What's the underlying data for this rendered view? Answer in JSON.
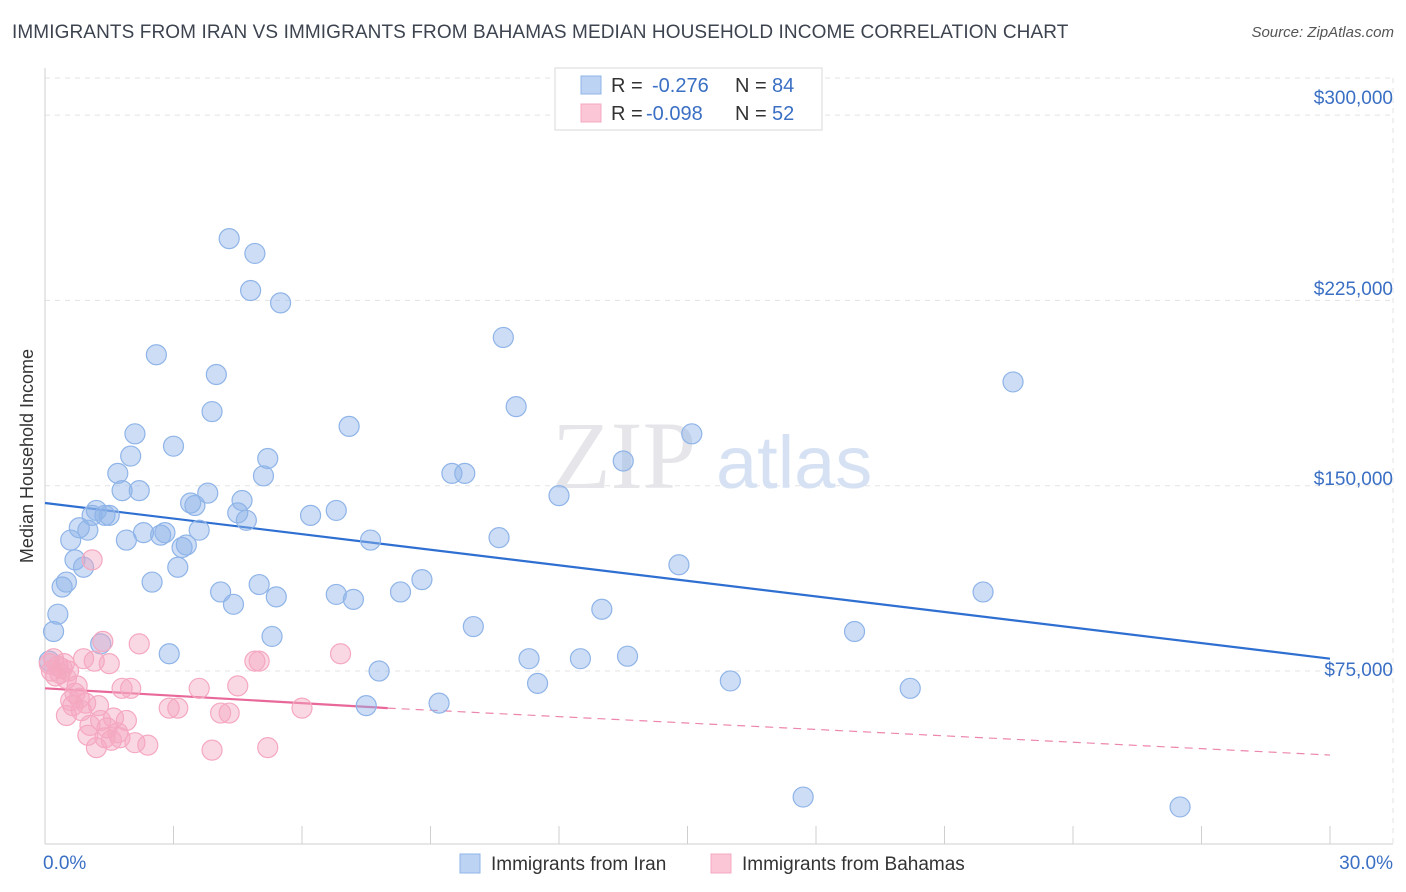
{
  "chart_data": {
    "type": "scatter",
    "title": "IMMIGRANTS FROM IRAN VS IMMIGRANTS FROM BAHAMAS MEDIAN HOUSEHOLD INCOME CORRELATION CHART",
    "source": "Source: ZipAtlas.com",
    "xlabel": "",
    "ylabel": "Median Household Income",
    "xlim": [
      0,
      30
    ],
    "ylim": [
      5000,
      315000
    ],
    "x_tick_labels": [
      "0.0%",
      "30.0%"
    ],
    "y_ticks": [
      75000,
      150000,
      225000,
      300000
    ],
    "y_tick_labels": [
      "$75,000",
      "$150,000",
      "$225,000",
      "$300,000"
    ],
    "watermark": {
      "left": "ZIP",
      "right": "atlas"
    },
    "legend": [
      {
        "r_label": "R =",
        "r": "-0.276",
        "n_label": "N =",
        "n": "84"
      },
      {
        "r_label": "R =",
        "r": "-0.098",
        "n_label": "N =",
        "n": "52"
      }
    ],
    "series": [
      {
        "name": "Immigrants from Iran",
        "color": "#8fb4e8",
        "line_color": "#2e6fd1",
        "trend": {
          "x0": 0,
          "y0": 143000,
          "x1": 30,
          "y1": 80000
        },
        "points": [
          [
            0.2,
            91000
          ],
          [
            0.3,
            98000
          ],
          [
            0.4,
            109000
          ],
          [
            0.5,
            111000
          ],
          [
            0.6,
            128000
          ],
          [
            0.7,
            120000
          ],
          [
            0.8,
            133000
          ],
          [
            0.9,
            117000
          ],
          [
            1.0,
            132000
          ],
          [
            1.1,
            138000
          ],
          [
            1.2,
            140000
          ],
          [
            1.3,
            86000
          ],
          [
            1.4,
            138000
          ],
          [
            1.5,
            138000
          ],
          [
            1.7,
            155000
          ],
          [
            1.8,
            148000
          ],
          [
            1.9,
            128000
          ],
          [
            2.0,
            162000
          ],
          [
            2.1,
            171000
          ],
          [
            2.2,
            148000
          ],
          [
            2.3,
            131000
          ],
          [
            2.5,
            111000
          ],
          [
            2.6,
            203000
          ],
          [
            2.7,
            130000
          ],
          [
            2.8,
            131000
          ],
          [
            2.9,
            82000
          ],
          [
            3.0,
            166000
          ],
          [
            3.1,
            117000
          ],
          [
            3.2,
            125000
          ],
          [
            3.3,
            126000
          ],
          [
            3.4,
            143000
          ],
          [
            3.5,
            142000
          ],
          [
            3.6,
            132000
          ],
          [
            3.8,
            147000
          ],
          [
            3.9,
            180000
          ],
          [
            4.0,
            195000
          ],
          [
            4.1,
            107000
          ],
          [
            4.3,
            250000
          ],
          [
            4.4,
            102000
          ],
          [
            4.5,
            139000
          ],
          [
            4.6,
            144000
          ],
          [
            4.7,
            136000
          ],
          [
            4.8,
            229000
          ],
          [
            4.9,
            244000
          ],
          [
            5.0,
            110000
          ],
          [
            5.1,
            154000
          ],
          [
            5.2,
            161000
          ],
          [
            5.3,
            89000
          ],
          [
            5.4,
            105000
          ],
          [
            5.5,
            224000
          ],
          [
            6.2,
            138000
          ],
          [
            6.8,
            106000
          ],
          [
            6.8,
            140000
          ],
          [
            7.1,
            174000
          ],
          [
            7.2,
            104000
          ],
          [
            7.5,
            61000
          ],
          [
            7.6,
            128000
          ],
          [
            7.8,
            75000
          ],
          [
            8.3,
            107000
          ],
          [
            8.8,
            112000
          ],
          [
            9.2,
            62000
          ],
          [
            9.5,
            155000
          ],
          [
            9.8,
            155000
          ],
          [
            10.0,
            93000
          ],
          [
            10.6,
            129000
          ],
          [
            10.7,
            210000
          ],
          [
            11.0,
            182000
          ],
          [
            11.3,
            80000
          ],
          [
            11.5,
            70000
          ],
          [
            12.0,
            146000
          ],
          [
            12.5,
            80000
          ],
          [
            13.0,
            100000
          ],
          [
            13.5,
            160000
          ],
          [
            13.6,
            81000
          ],
          [
            14.8,
            118000
          ],
          [
            15.1,
            171000
          ],
          [
            16.0,
            71000
          ],
          [
            17.7,
            24000
          ],
          [
            18.9,
            91000
          ],
          [
            20.2,
            68000
          ],
          [
            21.9,
            107000
          ],
          [
            22.6,
            192000
          ],
          [
            26.5,
            20000
          ],
          [
            0.1,
            79000
          ]
        ]
      },
      {
        "name": "Immigrants from Bahamas",
        "color": "#f5a8c0",
        "line_color": "#e8689a",
        "trend": {
          "x0": 0,
          "y0": 68000,
          "x1": 8,
          "y1": 60000
        },
        "trend_ext": {
          "x0": 8,
          "y0": 60000,
          "x1": 30,
          "y1": 41000
        },
        "points": [
          [
            0.1,
            78000
          ],
          [
            0.15,
            75000
          ],
          [
            0.2,
            80000
          ],
          [
            0.25,
            73000
          ],
          [
            0.3,
            77000
          ],
          [
            0.35,
            74000
          ],
          [
            0.4,
            76000
          ],
          [
            0.45,
            78000
          ],
          [
            0.5,
            72000
          ],
          [
            0.55,
            75000
          ],
          [
            0.6,
            63000
          ],
          [
            0.65,
            61000
          ],
          [
            0.7,
            66000
          ],
          [
            0.75,
            69000
          ],
          [
            0.8,
            64000
          ],
          [
            0.85,
            59000
          ],
          [
            0.9,
            80000
          ],
          [
            0.95,
            62000
          ],
          [
            1.0,
            49000
          ],
          [
            1.05,
            53000
          ],
          [
            1.1,
            120000
          ],
          [
            1.15,
            79000
          ],
          [
            1.2,
            44000
          ],
          [
            1.3,
            55000
          ],
          [
            1.35,
            87000
          ],
          [
            1.4,
            48000
          ],
          [
            1.45,
            52000
          ],
          [
            1.5,
            78000
          ],
          [
            1.55,
            47000
          ],
          [
            1.6,
            56000
          ],
          [
            1.7,
            50000
          ],
          [
            1.75,
            48000
          ],
          [
            1.8,
            68000
          ],
          [
            1.9,
            55000
          ],
          [
            2.0,
            68000
          ],
          [
            2.1,
            46000
          ],
          [
            2.2,
            86000
          ],
          [
            2.4,
            45000
          ],
          [
            2.9,
            60000
          ],
          [
            3.1,
            60000
          ],
          [
            3.6,
            68000
          ],
          [
            3.9,
            43000
          ],
          [
            4.1,
            58000
          ],
          [
            4.3,
            58000
          ],
          [
            4.5,
            69000
          ],
          [
            4.9,
            79000
          ],
          [
            5.0,
            79000
          ],
          [
            5.2,
            44000
          ],
          [
            6.0,
            60000
          ],
          [
            6.9,
            82000
          ],
          [
            0.5,
            57000
          ],
          [
            1.25,
            61000
          ]
        ]
      }
    ]
  }
}
